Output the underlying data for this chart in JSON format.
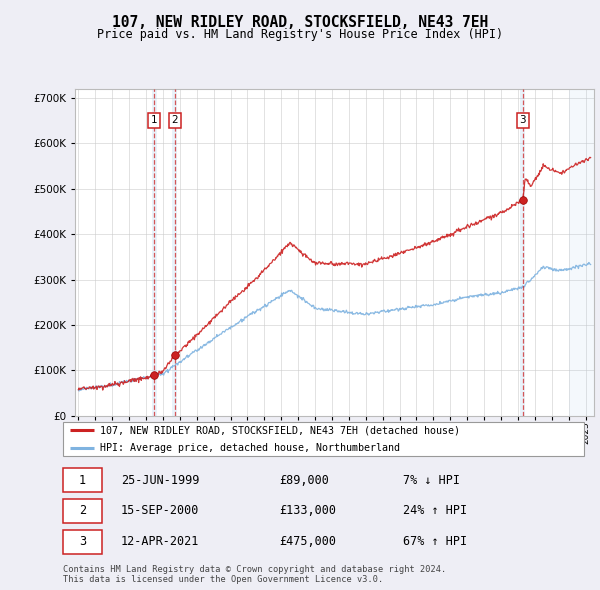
{
  "title": "107, NEW RIDLEY ROAD, STOCKSFIELD, NE43 7EH",
  "subtitle": "Price paid vs. HM Land Registry's House Price Index (HPI)",
  "ytick_values": [
    0,
    100000,
    200000,
    300000,
    400000,
    500000,
    600000,
    700000
  ],
  "ylim": [
    0,
    720000
  ],
  "xlim_start": 1994.8,
  "xlim_end": 2025.5,
  "legend_line1": "107, NEW RIDLEY ROAD, STOCKSFIELD, NE43 7EH (detached house)",
  "legend_line2": "HPI: Average price, detached house, Northumberland",
  "transactions": [
    {
      "num": 1,
      "date": "25-JUN-1999",
      "price": 89000,
      "pct": "7%",
      "dir": "↓",
      "year": 1999.48
    },
    {
      "num": 2,
      "date": "15-SEP-2000",
      "price": 133000,
      "pct": "24%",
      "dir": "↑",
      "year": 2000.71
    },
    {
      "num": 3,
      "date": "12-APR-2021",
      "price": 475000,
      "pct": "67%",
      "dir": "↑",
      "year": 2021.28
    }
  ],
  "footnote1": "Contains HM Land Registry data © Crown copyright and database right 2024.",
  "footnote2": "This data is licensed under the Open Government Licence v3.0.",
  "background_color": "#eeeef5",
  "plot_bg_color": "#ffffff",
  "hpi_color": "#7fb3e0",
  "price_color": "#cc2222",
  "marker_color": "#cc2222",
  "grid_color": "#cccccc"
}
